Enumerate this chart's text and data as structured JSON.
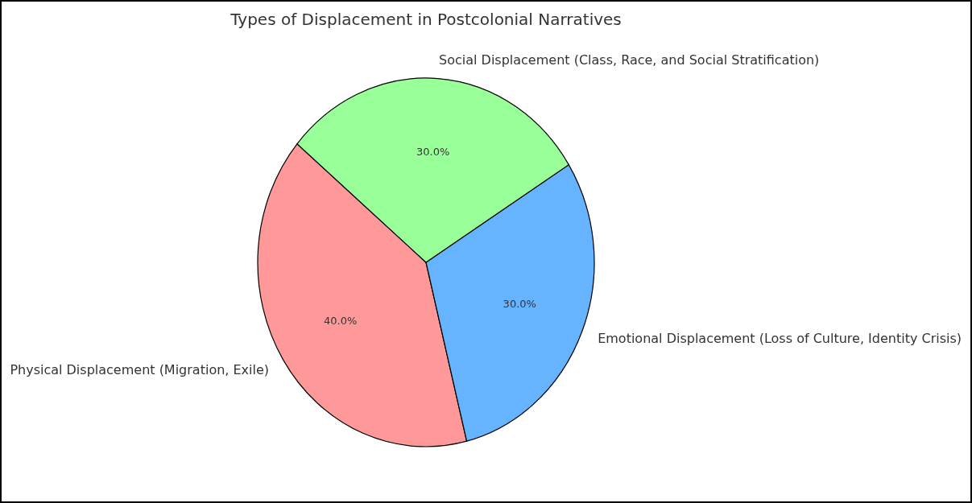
{
  "chart_data": {
    "type": "pie",
    "title": "Types of Displacement in Postcolonial Narratives",
    "categories": [
      "Physical Displacement (Migration, Exile)",
      "Emotional Displacement (Loss of Culture, Identity Crisis)",
      "Social Displacement (Class, Race, and Social Stratification)"
    ],
    "values": [
      40,
      30,
      30
    ],
    "colors": [
      "#ff9999",
      "#66b3ff",
      "#99ff99"
    ],
    "value_labels": [
      "40.0%",
      "30.0%",
      "30.0%"
    ]
  }
}
